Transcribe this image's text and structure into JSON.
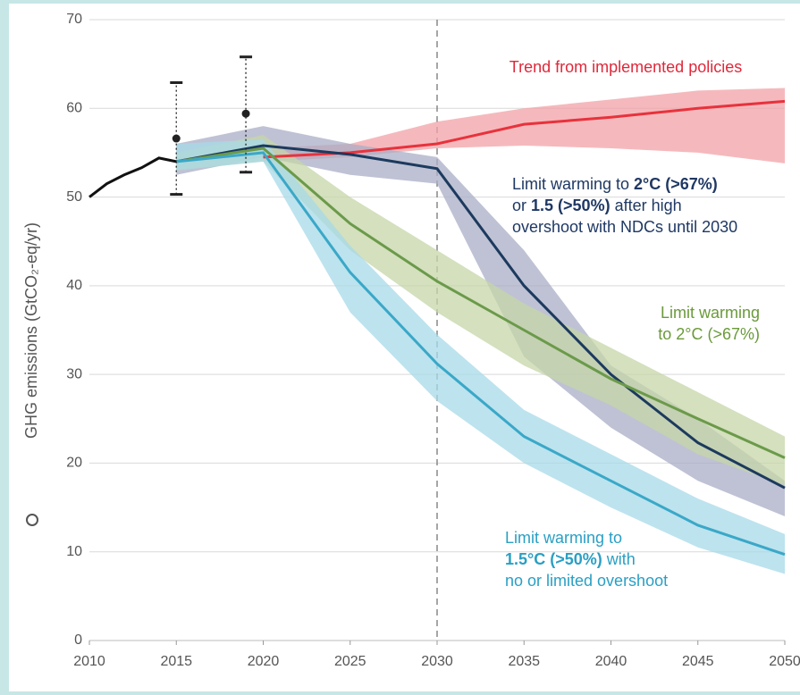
{
  "chart_data": {
    "type": "line",
    "ylabel": "GHG emissions (GtCO₂-eq/yr)",
    "xlim": [
      2010,
      2050
    ],
    "xticks": [
      2010,
      2015,
      2020,
      2025,
      2030,
      2035,
      2040,
      2045,
      2050
    ],
    "ylim": [
      0,
      70
    ],
    "yticks": [
      0,
      10,
      20,
      30,
      40,
      50,
      60,
      70
    ],
    "grid": true,
    "reference_line_x": 2030,
    "history": {
      "color": "#111111",
      "x": [
        2010,
        2011,
        2012,
        2013,
        2014,
        2015
      ],
      "values": [
        50,
        51.5,
        52.5,
        53.3,
        54.4,
        54.0
      ]
    },
    "estimates": [
      {
        "x": 2015,
        "value": 56.6,
        "low": 50.3,
        "high": 62.9
      },
      {
        "x": 2019,
        "value": 59.4,
        "low": 52.8,
        "high": 65.8
      }
    ],
    "series": [
      {
        "color": "#e8323c",
        "band_color": "#f2a2a7",
        "label_color": "#e0283a",
        "label": [
          [
            {
              "text": "Trend from implemented policies",
              "bold": false
            }
          ]
        ],
        "x": [
          2020,
          2025,
          2030,
          2035,
          2040,
          2045,
          2050
        ],
        "values": [
          54.5,
          55,
          56,
          58.2,
          59,
          60,
          60.8
        ],
        "band": {
          "low": [
            54,
            54.5,
            55.5,
            55.8,
            55.5,
            55,
            53.8
          ],
          "high": [
            55.5,
            56,
            58.5,
            60,
            61,
            62,
            62.3
          ]
        }
      },
      {
        "color": "#1c3a5e",
        "band_color": "#a9aec6",
        "label_color": "#1f3864",
        "label": [
          [
            {
              "text": "Limit warming to ",
              "bold": false
            },
            {
              "text": "2°C (>67%)",
              "bold": true
            }
          ],
          [
            {
              "text": "or ",
              "bold": false
            },
            {
              "text": "1.5 (>50%)",
              "bold": true
            },
            {
              "text": " after high",
              "bold": false
            }
          ],
          [
            {
              "text": "overshoot with NDCs until 2030",
              "bold": false
            }
          ]
        ],
        "x": [
          2015,
          2020,
          2025,
          2030,
          2035,
          2040,
          2045,
          2050
        ],
        "values": [
          54,
          55.8,
          54.8,
          53.2,
          40,
          30,
          22.3,
          17.2
        ],
        "band": {
          "low": [
            52.5,
            54.5,
            52.5,
            51.5,
            32,
            24,
            18,
            14
          ],
          "high": [
            56,
            58,
            56,
            54.5,
            44,
            31,
            25,
            18
          ]
        }
      },
      {
        "color": "#6b9a4a",
        "band_color": "#c6d6a8",
        "label_color": "#6b9a3a",
        "label": [
          [
            {
              "text": "Limit warming",
              "bold": false
            }
          ],
          [
            {
              "text": "to 2°C (>67%)",
              "bold": false
            }
          ]
        ],
        "x": [
          2015,
          2020,
          2025,
          2030,
          2035,
          2040,
          2045,
          2050
        ],
        "values": [
          54,
          55.5,
          47,
          40.5,
          35,
          29.5,
          25,
          20.6
        ],
        "band": {
          "low": [
            53,
            54,
            44,
            37,
            31,
            26.5,
            21,
            17.5
          ],
          "high": [
            55,
            57,
            50,
            44,
            38,
            33,
            28,
            23
          ]
        }
      },
      {
        "color": "#3aa8c8",
        "band_color": "#a7d9e8",
        "label_color": "#2a9fc4",
        "label": [
          [
            {
              "text": "Limit warming to",
              "bold": false
            }
          ],
          [
            {
              "text": "1.5°C (>50%)",
              "bold": true
            },
            {
              "text": " with",
              "bold": false
            }
          ],
          [
            {
              "text": "no or limited overshoot",
              "bold": false
            }
          ]
        ],
        "x": [
          2015,
          2020,
          2025,
          2030,
          2035,
          2040,
          2045,
          2050
        ],
        "values": [
          54,
          55,
          41.5,
          31.2,
          23,
          18,
          13,
          9.7
        ],
        "band": {
          "low": [
            53,
            54,
            37,
            27,
            20,
            15,
            10.5,
            7.5
          ],
          "high": [
            56,
            56.5,
            44.5,
            34.5,
            26,
            21,
            16,
            12
          ]
        }
      }
    ]
  }
}
